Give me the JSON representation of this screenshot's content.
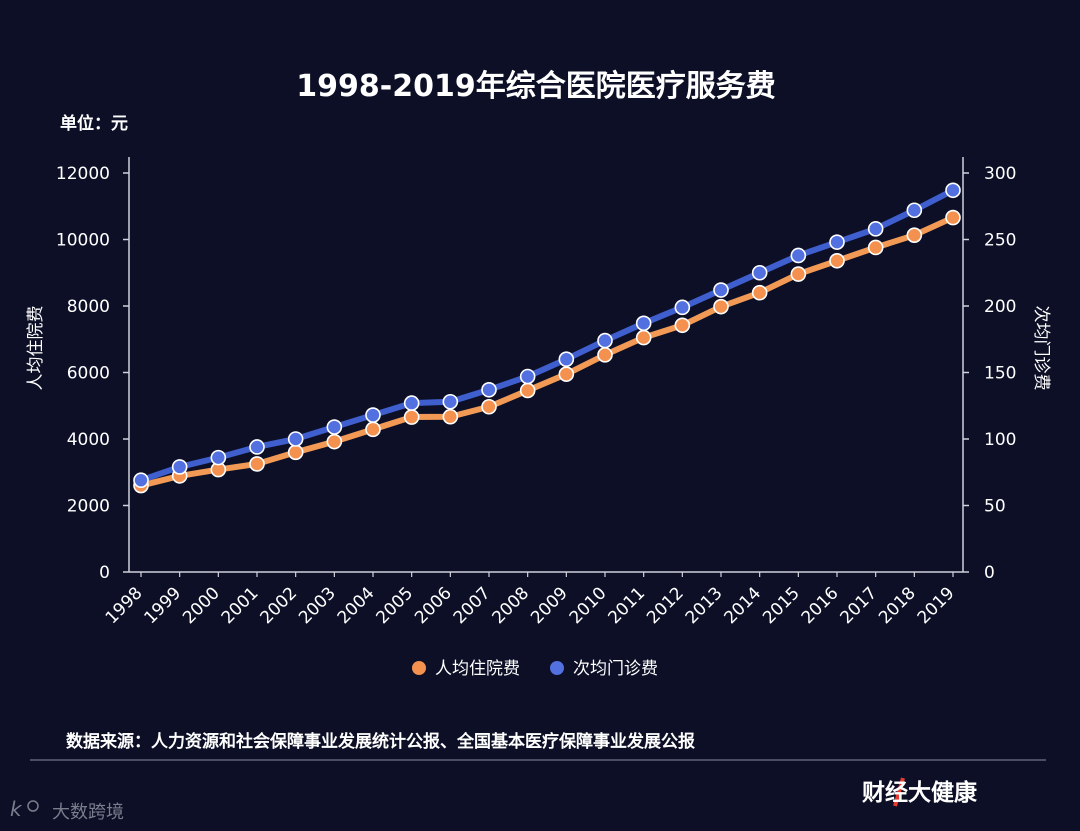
{
  "chart_data": {
    "type": "line",
    "title": "1998-2019年综合医院医疗服务费",
    "unit_label": "单位：元",
    "categories": [
      "1998",
      "1999",
      "2000",
      "2001",
      "2002",
      "2003",
      "2004",
      "2005",
      "2006",
      "2007",
      "2008",
      "2009",
      "2010",
      "2011",
      "2012",
      "2013",
      "2014",
      "2015",
      "2016",
      "2017",
      "2018",
      "2019"
    ],
    "series": [
      {
        "name": "人均住院费",
        "axis": "left",
        "color": "#f4914f",
        "line_color": "#f29a55",
        "values": [
          2600,
          2890,
          3080,
          3250,
          3600,
          3920,
          4290,
          4660,
          4670,
          4970,
          5460,
          5950,
          6530,
          7050,
          7420,
          7980,
          8400,
          8960,
          9360,
          9760,
          10130,
          10660
        ]
      },
      {
        "name": "次均门诊费",
        "axis": "right",
        "color": "#5270e0",
        "line_color": "#3f5fce",
        "values": [
          69,
          79,
          86,
          94,
          100,
          109,
          118,
          127,
          128,
          137,
          147,
          160,
          174,
          187,
          199,
          212,
          225,
          238,
          248,
          258,
          272,
          287
        ]
      }
    ],
    "y_left": {
      "label": "人均住院费",
      "ylim": [
        0,
        12000
      ],
      "ticks": [
        0,
        2000,
        4000,
        6000,
        8000,
        10000,
        12000
      ]
    },
    "y_right": {
      "label": "次均门诊费",
      "ylim": [
        0,
        300
      ],
      "ticks": [
        0,
        50,
        100,
        150,
        200,
        250,
        300
      ]
    },
    "legend_position": "bottom",
    "grid": false
  },
  "footer": {
    "source": "数据来源：人力资源和社会保障事业发展统计公报、全国基本医疗保障事业发展公报",
    "brand": "财经大健康",
    "watermark": "大数跨境"
  }
}
